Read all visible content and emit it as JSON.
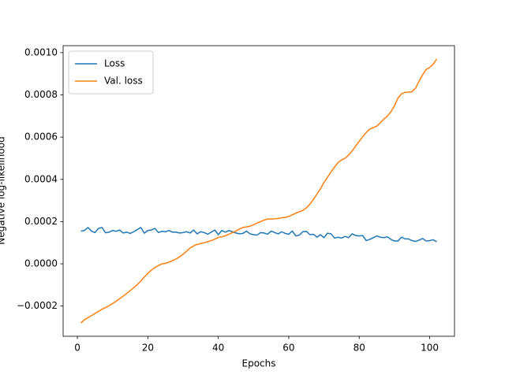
{
  "chart_data": {
    "type": "line",
    "xlabel": "Epochs",
    "ylabel": "Negative log-likelihood",
    "x": [
      1,
      2,
      3,
      4,
      5,
      6,
      7,
      8,
      9,
      10,
      11,
      12,
      13,
      14,
      15,
      16,
      17,
      18,
      19,
      20,
      21,
      22,
      23,
      24,
      25,
      26,
      27,
      28,
      29,
      30,
      31,
      32,
      33,
      34,
      35,
      36,
      37,
      38,
      39,
      40,
      41,
      42,
      43,
      44,
      45,
      46,
      47,
      48,
      49,
      50,
      51,
      52,
      53,
      54,
      55,
      56,
      57,
      58,
      59,
      60,
      61,
      62,
      63,
      64,
      65,
      66,
      67,
      68,
      69,
      70,
      71,
      72,
      73,
      74,
      75,
      76,
      77,
      78,
      79,
      80,
      81,
      82,
      83,
      84,
      85,
      86,
      87,
      88,
      89,
      90,
      91,
      92,
      93,
      94,
      95,
      96,
      97,
      98,
      99,
      100,
      101,
      102
    ],
    "series": [
      {
        "name": "Loss",
        "color": "#1f77b4",
        "values": [
          0.000155,
          0.000158,
          0.000172,
          0.000155,
          0.000148,
          0.000168,
          0.000172,
          0.000147,
          0.00015,
          0.000158,
          0.000154,
          0.00016,
          0.000146,
          0.00015,
          0.000144,
          0.000152,
          0.000162,
          0.000172,
          0.000145,
          0.000158,
          0.00016,
          0.000168,
          0.000148,
          0.000154,
          0.000152,
          0.000158,
          0.00015,
          0.00015,
          0.000146,
          0.000148,
          0.000152,
          0.000146,
          0.00016,
          0.000142,
          0.000152,
          0.000148,
          0.00014,
          0.00015,
          0.00016,
          0.000138,
          0.000158,
          0.00015,
          0.000158,
          0.000152,
          0.000146,
          0.000142,
          0.000144,
          0.000155,
          0.000142,
          0.000138,
          0.000136,
          0.000148,
          0.000146,
          0.00014,
          0.000155,
          0.000148,
          0.000142,
          0.000152,
          0.000144,
          0.00014,
          0.000155,
          0.000132,
          0.000136,
          0.000152,
          0.000154,
          0.000138,
          0.00014,
          0.000126,
          0.000138,
          0.000124,
          0.000145,
          0.000142,
          0.000122,
          0.000126,
          0.000122,
          0.00013,
          0.000124,
          0.000142,
          0.000134,
          0.000132,
          0.000134,
          0.00011,
          0.000116,
          0.000124,
          0.000132,
          0.000126,
          0.000124,
          0.000128,
          0.000116,
          0.000108,
          0.000108,
          0.000126,
          0.000118,
          0.000118,
          0.00011,
          0.000106,
          0.000112,
          0.00012,
          0.000108,
          0.00011,
          0.000114,
          0.000104
        ]
      },
      {
        "name": "Val. loss",
        "color": "#ff7f0e",
        "values": [
          -0.00028,
          -0.000265,
          -0.000255,
          -0.000245,
          -0.000235,
          -0.000225,
          -0.000215,
          -0.000207,
          -0.000198,
          -0.000188,
          -0.000177,
          -0.000165,
          -0.000153,
          -0.00014,
          -0.000127,
          -0.000113,
          -9.8e-05,
          -8.2e-05,
          -6.3e-05,
          -4.5e-05,
          -3e-05,
          -1.8e-05,
          -8e-06,
          0.0,
          2e-06,
          8e-06,
          1.5e-05,
          2.3e-05,
          3.3e-05,
          4.5e-05,
          6e-05,
          7.5e-05,
          8.5e-05,
          9.2e-05,
          9.6e-05,
          0.0001,
          0.000105,
          0.00011,
          0.000117,
          0.000125,
          0.000128,
          0.000133,
          0.00014,
          0.000148,
          0.000155,
          0.000165,
          0.000172,
          0.000175,
          0.000178,
          0.000185,
          0.000193,
          0.0002,
          0.000207,
          0.000212,
          0.000212,
          0.000213,
          0.000215,
          0.000218,
          0.00022,
          0.000224,
          0.000232,
          0.00024,
          0.000247,
          0.000253,
          0.000265,
          0.000282,
          0.000305,
          0.00033,
          0.000355,
          0.000385,
          0.00041,
          0.000435,
          0.000458,
          0.00048,
          0.000492,
          0.0005,
          0.000515,
          0.000535,
          0.000558,
          0.00058,
          0.000602,
          0.000622,
          0.000638,
          0.000645,
          0.000652,
          0.000668,
          0.000685,
          0.0007,
          0.00072,
          0.000748,
          0.000785,
          0.000805,
          0.000812,
          0.000813,
          0.000815,
          0.000832,
          0.000865,
          0.000895,
          0.00092,
          0.00093,
          0.000945,
          0.00097
        ]
      }
    ],
    "xlim": [
      -4.05,
      107.05
    ],
    "xticks": [
      0,
      20,
      40,
      60,
      80,
      100
    ],
    "ylim": [
      -0.000343,
      0.001033
    ],
    "yticks": [
      {
        "value": -0.0002,
        "label": "−0.0002"
      },
      {
        "value": 0.0,
        "label": "0.0000"
      },
      {
        "value": 0.0002,
        "label": "0.0002"
      },
      {
        "value": 0.0004,
        "label": "0.0004"
      },
      {
        "value": 0.0006,
        "label": "0.0006"
      },
      {
        "value": 0.0008,
        "label": "0.0008"
      },
      {
        "value": 0.001,
        "label": "0.0010"
      }
    ],
    "legend": "upper left",
    "grid": false
  }
}
